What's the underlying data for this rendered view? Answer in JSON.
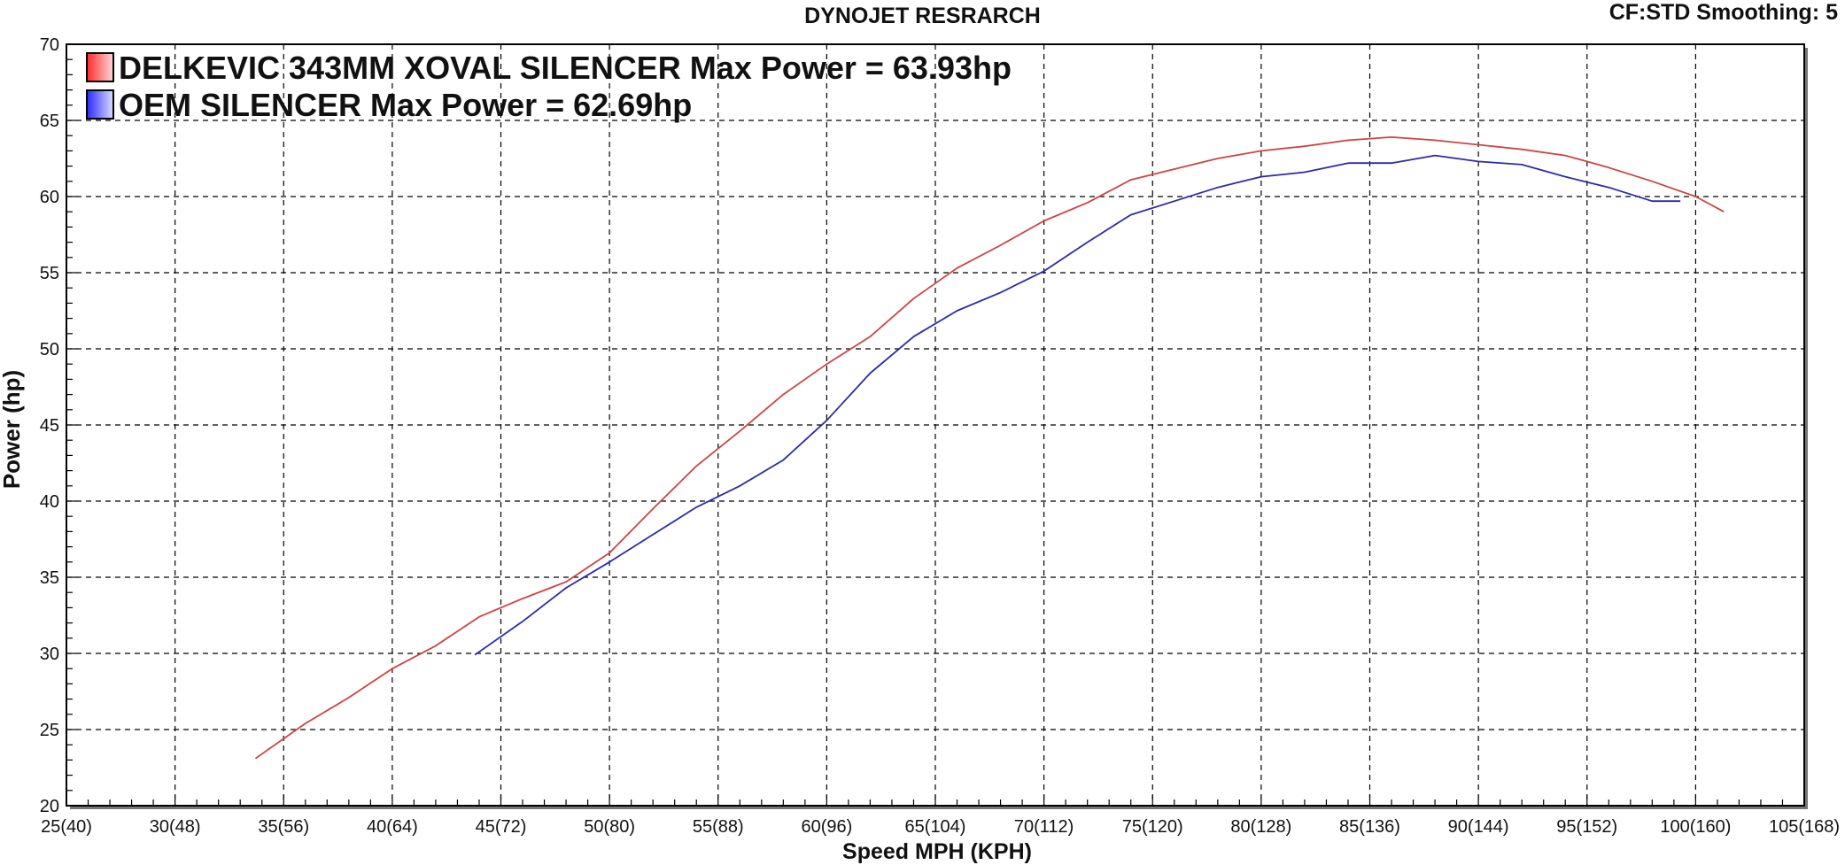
{
  "header": {
    "title": "DYNOJET RESRARCH",
    "settings": "CF:STD Smoothing: 5"
  },
  "colors": {
    "series1": "#cc4444",
    "series2": "#2b2ba8",
    "grid": "#000000"
  },
  "chart_data": {
    "type": "line",
    "title": "DYNOJET RESRARCH",
    "xlabel": "Speed MPH (KPH)",
    "ylabel": "Power (hp)",
    "xlim": [
      25,
      105
    ],
    "ylim": [
      20,
      70
    ],
    "x_ticks": [
      25,
      30,
      35,
      40,
      45,
      50,
      55,
      60,
      65,
      70,
      75,
      80,
      85,
      90,
      95,
      100,
      105
    ],
    "x_tick_labels": [
      "25(40)",
      "30(48)",
      "35(56)",
      "40(64)",
      "45(72)",
      "50(80)",
      "55(88)",
      "60(96)",
      "65(104)",
      "70(112)",
      "75(120)",
      "80(128)",
      "85(136)",
      "90(144)",
      "95(152)",
      "100(160)",
      "105(168)"
    ],
    "y_ticks": [
      20,
      25,
      30,
      35,
      40,
      45,
      50,
      55,
      60,
      65,
      70
    ],
    "y_tick_labels": [
      "20",
      "25",
      "30",
      "35",
      "40",
      "45",
      "50",
      "55",
      "60",
      "65",
      "70"
    ],
    "grid": true,
    "legend_position": "top-left",
    "series": [
      {
        "name": "DELKEVIC 343MM XOVAL SILENCER Max Power = 63.93hp",
        "color": "#cc4444",
        "x": [
          33.7,
          36,
          38,
          40,
          42,
          44,
          46,
          48,
          50,
          52,
          54,
          56,
          58,
          60,
          62,
          64,
          66,
          68,
          70,
          72,
          74,
          76,
          78,
          80,
          82,
          84,
          86,
          88,
          90,
          92,
          94,
          96,
          98,
          100,
          101.3
        ],
        "y": [
          23.1,
          25.4,
          27.1,
          29.0,
          30.5,
          32.4,
          33.6,
          34.7,
          36.6,
          39.5,
          42.3,
          44.6,
          47.0,
          49.0,
          50.8,
          53.3,
          55.3,
          56.8,
          58.4,
          59.6,
          61.1,
          61.8,
          62.5,
          63.0,
          63.3,
          63.7,
          63.9,
          63.7,
          63.4,
          63.1,
          62.7,
          61.9,
          61.0,
          60.0,
          59.0
        ]
      },
      {
        "name": "OEM SILENCER Max Power = 62.69hp",
        "color": "#2b2ba8",
        "x": [
          43.8,
          46,
          48,
          50,
          52,
          54,
          56,
          58,
          60,
          62,
          64,
          66,
          68,
          70,
          72,
          74,
          76,
          78,
          80,
          82,
          84,
          86,
          88,
          90,
          92,
          94,
          96,
          98,
          99.3
        ],
        "y": [
          29.9,
          32.1,
          34.3,
          36.0,
          37.8,
          39.6,
          41.0,
          42.7,
          45.3,
          48.4,
          50.8,
          52.5,
          53.7,
          55.1,
          57.0,
          58.8,
          59.7,
          60.6,
          61.3,
          61.6,
          62.2,
          62.2,
          62.7,
          62.3,
          62.1,
          61.3,
          60.6,
          59.7,
          59.7
        ]
      }
    ]
  }
}
